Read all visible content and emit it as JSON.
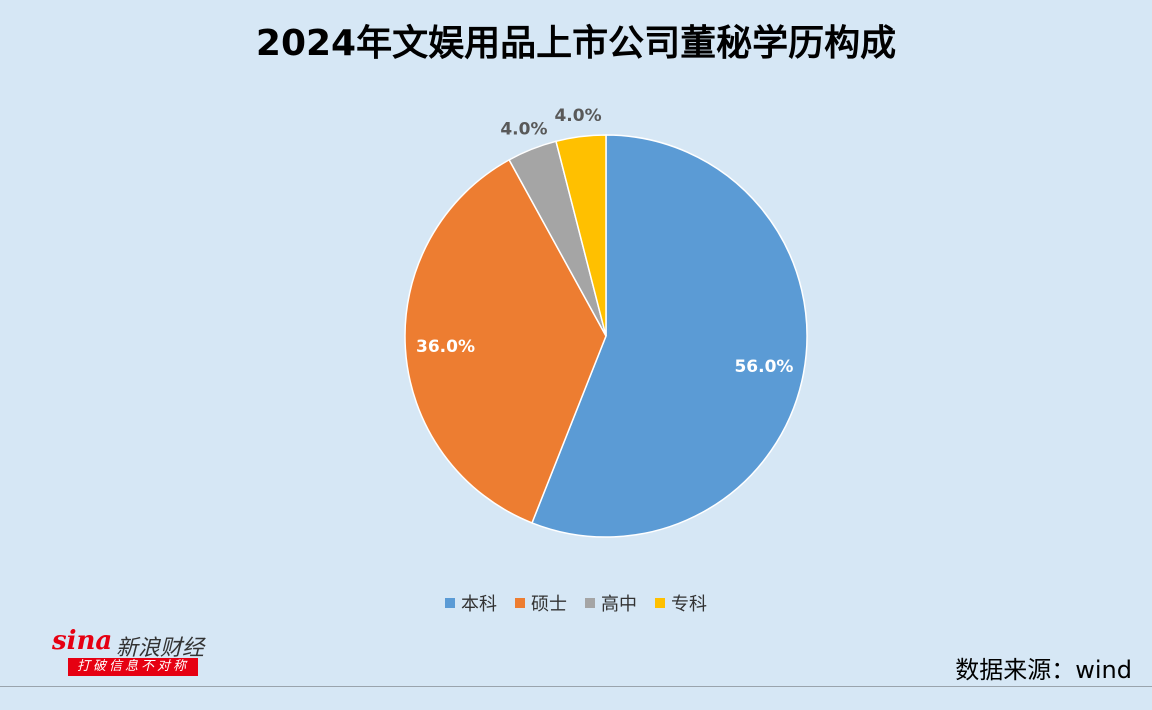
{
  "chart_data": {
    "type": "pie",
    "title": "2024年文娱用品上市公司董秘学历构成",
    "slices": [
      {
        "name": "本科",
        "value": 56.0,
        "label": "56.0%",
        "color": "#5b9bd5"
      },
      {
        "name": "硕士",
        "value": 36.0,
        "label": "36.0%",
        "color": "#ed7d31"
      },
      {
        "name": "高中",
        "value": 4.0,
        "label": "4.0%",
        "color": "#a5a5a5"
      },
      {
        "name": "专科",
        "value": 4.0,
        "label": "4.0%",
        "color": "#ffc000"
      }
    ],
    "legend_position": "bottom"
  },
  "logo": {
    "brand": "sina",
    "name": "新浪财经",
    "slogan": "打破信息不对称"
  },
  "source": "数据来源：wind"
}
